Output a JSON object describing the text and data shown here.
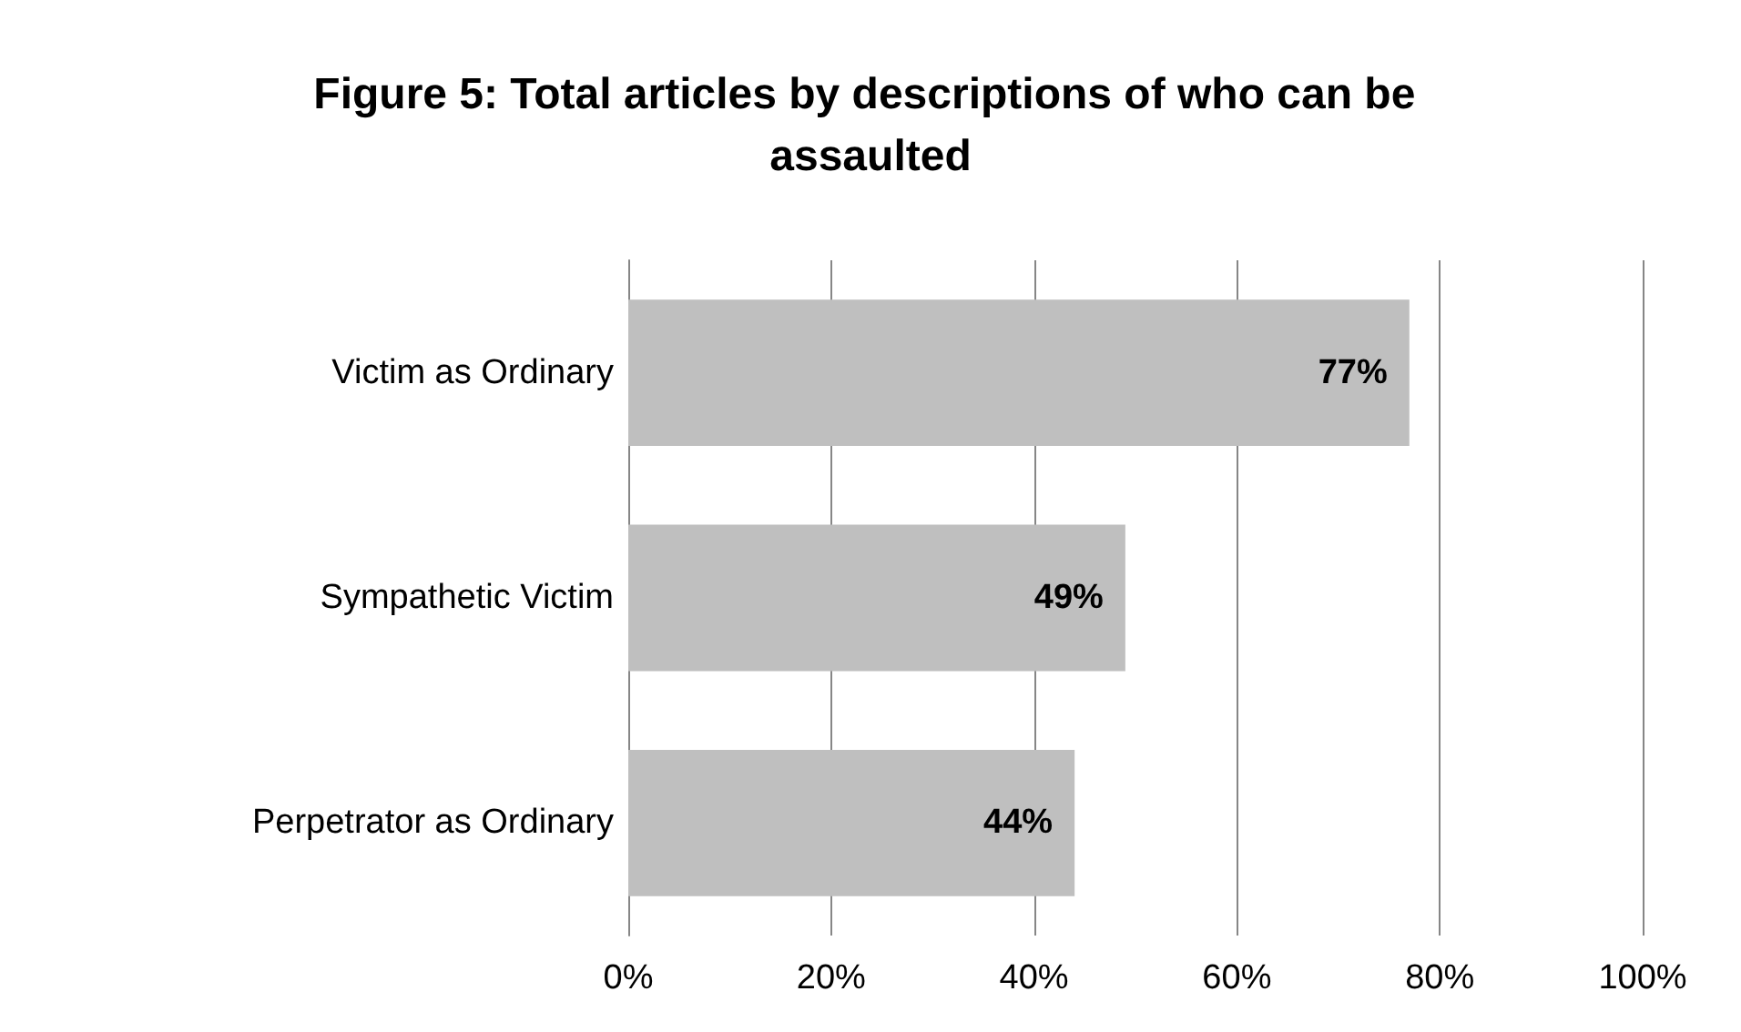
{
  "chart_data": {
    "type": "bar",
    "orientation": "horizontal",
    "title": "Figure 5: Total articles by descriptions of who can be assaulted",
    "categories": [
      "Victim as Ordinary",
      "Sympathetic Victim",
      "Perpetrator as Ordinary"
    ],
    "values": [
      77,
      49,
      44
    ],
    "value_labels": [
      "77%",
      "49%",
      "44%"
    ],
    "color": "#bfbfbf",
    "xlim": [
      0,
      100
    ],
    "xticks": [
      {
        "value": 0,
        "label": "0%"
      },
      {
        "value": 20,
        "label": "20%"
      },
      {
        "value": 40,
        "label": "40%"
      },
      {
        "value": 60,
        "label": "60%"
      },
      {
        "value": 80,
        "label": "80%"
      },
      {
        "value": 100,
        "label": "100%"
      }
    ],
    "grid": "x"
  }
}
